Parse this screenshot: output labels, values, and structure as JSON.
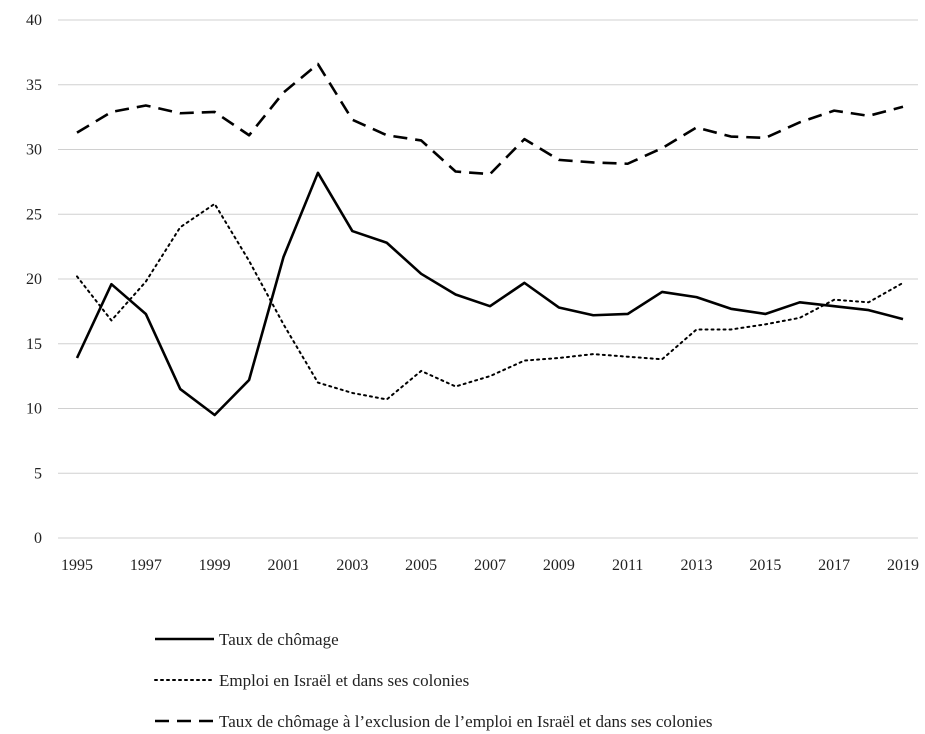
{
  "chart_data": {
    "type": "line",
    "title": "",
    "xlabel": "",
    "ylabel": "",
    "ylim": [
      0,
      40
    ],
    "yticks": [
      0,
      5,
      10,
      15,
      20,
      25,
      30,
      35,
      40
    ],
    "grid": "horizontal",
    "legend_position": "bottom",
    "x": [
      1995,
      1996,
      1997,
      1998,
      1999,
      2000,
      2001,
      2002,
      2003,
      2004,
      2005,
      2006,
      2007,
      2008,
      2009,
      2010,
      2011,
      2012,
      2013,
      2014,
      2015,
      2016,
      2017,
      2018,
      2019
    ],
    "xtick_labels": [
      "1995",
      "1997",
      "1999",
      "2001",
      "2003",
      "2005",
      "2007",
      "2009",
      "2011",
      "2013",
      "2015",
      "2017",
      "2019"
    ],
    "series": [
      {
        "name": "Taux de chômage",
        "style": "solid",
        "color": "#000000",
        "values": [
          13.9,
          19.6,
          17.3,
          11.5,
          9.5,
          12.2,
          21.7,
          28.2,
          23.7,
          22.8,
          20.4,
          18.8,
          17.9,
          19.7,
          17.8,
          17.2,
          17.3,
          19.0,
          18.6,
          17.7,
          17.3,
          18.2,
          17.9,
          17.6,
          16.9
        ]
      },
      {
        "name": "Emploi en Israël et dans ses colonies",
        "style": "dotted",
        "color": "#000000",
        "values": [
          20.2,
          16.8,
          19.8,
          24.0,
          25.8,
          21.4,
          16.5,
          12.0,
          11.2,
          10.7,
          12.9,
          11.7,
          12.5,
          13.7,
          13.9,
          14.2,
          14.0,
          13.8,
          16.1,
          16.1,
          16.5,
          17.0,
          18.4,
          18.2,
          19.7
        ]
      },
      {
        "name": "Taux de chômage à l’exclusion de l’emploi en Israël et dans ses colonies",
        "style": "dashed",
        "color": "#000000",
        "values": [
          31.3,
          32.9,
          33.4,
          32.8,
          32.9,
          31.1,
          34.4,
          36.6,
          32.3,
          31.1,
          30.7,
          28.3,
          28.1,
          30.8,
          29.2,
          29.0,
          28.9,
          30.1,
          31.7,
          31.0,
          30.9,
          32.1,
          33.0,
          32.6,
          33.3
        ]
      }
    ]
  }
}
